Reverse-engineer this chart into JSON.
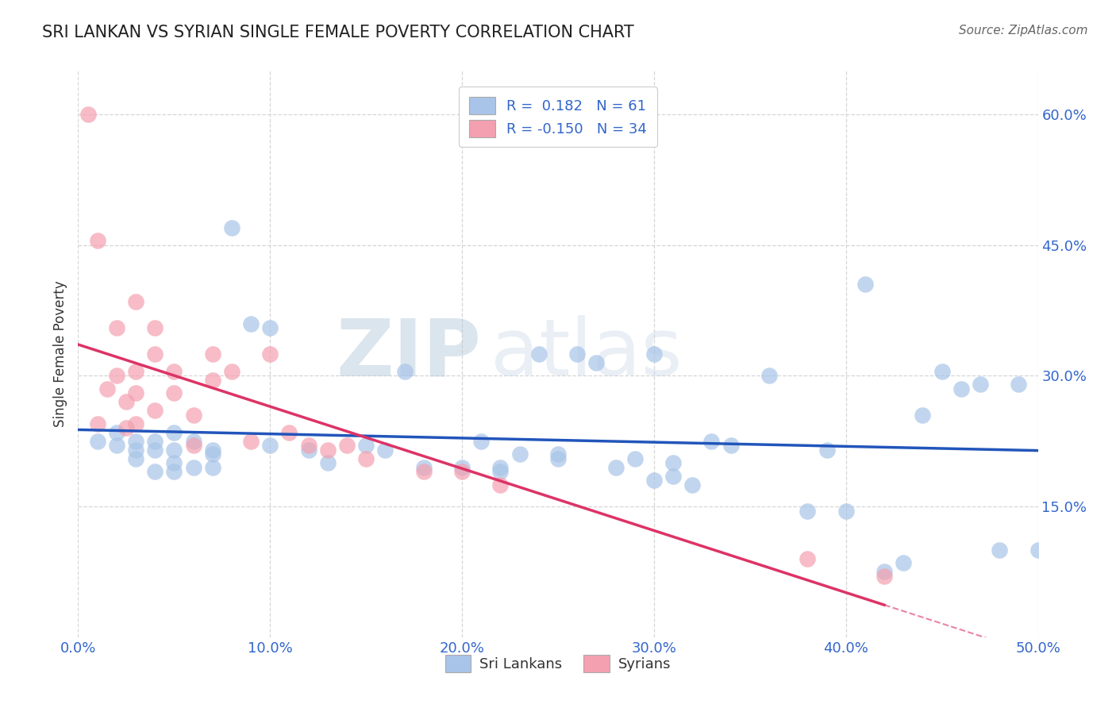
{
  "title": "SRI LANKAN VS SYRIAN SINGLE FEMALE POVERTY CORRELATION CHART",
  "source_text": "Source: ZipAtlas.com",
  "ylabel": "Single Female Poverty",
  "xlim": [
    0.0,
    0.5
  ],
  "ylim": [
    0.0,
    0.65
  ],
  "xticks": [
    0.0,
    0.1,
    0.2,
    0.3,
    0.4,
    0.5
  ],
  "xticklabels": [
    "0.0%",
    "10.0%",
    "20.0%",
    "30.0%",
    "40.0%",
    "50.0%"
  ],
  "yticks_right": [
    0.15,
    0.3,
    0.45,
    0.6
  ],
  "yticklabels_right": [
    "15.0%",
    "30.0%",
    "45.0%",
    "60.0%"
  ],
  "grid_color": "#cccccc",
  "background_color": "#ffffff",
  "watermark_zip": "ZIP",
  "watermark_atlas": "atlas",
  "sri_lanka_color": "#a8c4e8",
  "syrian_color": "#f4a0b0",
  "sri_lanka_trend_color": "#2255bb",
  "syrian_trend_color": "#dd3366",
  "sri_lanka_R": 0.182,
  "sri_lanka_N": 61,
  "syrian_R": -0.15,
  "syrian_N": 34,
  "legend_label_1": "Sri Lankans",
  "legend_label_2": "Syrians",
  "sri_lanka_x": [
    0.01,
    0.02,
    0.02,
    0.03,
    0.03,
    0.03,
    0.04,
    0.04,
    0.04,
    0.05,
    0.05,
    0.05,
    0.05,
    0.06,
    0.06,
    0.07,
    0.07,
    0.07,
    0.08,
    0.09,
    0.1,
    0.1,
    0.12,
    0.13,
    0.15,
    0.16,
    0.17,
    0.18,
    0.2,
    0.21,
    0.22,
    0.22,
    0.23,
    0.24,
    0.25,
    0.25,
    0.26,
    0.27,
    0.28,
    0.29,
    0.3,
    0.3,
    0.31,
    0.31,
    0.32,
    0.33,
    0.34,
    0.36,
    0.38,
    0.39,
    0.4,
    0.41,
    0.42,
    0.43,
    0.44,
    0.45,
    0.46,
    0.47,
    0.48,
    0.49,
    0.5
  ],
  "sri_lanka_y": [
    0.225,
    0.22,
    0.235,
    0.225,
    0.215,
    0.205,
    0.215,
    0.225,
    0.19,
    0.2,
    0.235,
    0.19,
    0.215,
    0.225,
    0.195,
    0.21,
    0.195,
    0.215,
    0.47,
    0.36,
    0.355,
    0.22,
    0.215,
    0.2,
    0.22,
    0.215,
    0.305,
    0.195,
    0.195,
    0.225,
    0.195,
    0.19,
    0.21,
    0.325,
    0.205,
    0.21,
    0.325,
    0.315,
    0.195,
    0.205,
    0.325,
    0.18,
    0.185,
    0.2,
    0.175,
    0.225,
    0.22,
    0.3,
    0.145,
    0.215,
    0.145,
    0.405,
    0.075,
    0.085,
    0.255,
    0.305,
    0.285,
    0.29,
    0.1,
    0.29,
    0.1
  ],
  "syrian_x": [
    0.005,
    0.01,
    0.01,
    0.015,
    0.02,
    0.02,
    0.025,
    0.025,
    0.03,
    0.03,
    0.03,
    0.03,
    0.04,
    0.04,
    0.04,
    0.05,
    0.05,
    0.06,
    0.06,
    0.07,
    0.07,
    0.08,
    0.09,
    0.1,
    0.11,
    0.12,
    0.13,
    0.14,
    0.15,
    0.18,
    0.2,
    0.22,
    0.38,
    0.42
  ],
  "syrian_y": [
    0.6,
    0.245,
    0.455,
    0.285,
    0.355,
    0.3,
    0.27,
    0.24,
    0.385,
    0.305,
    0.28,
    0.245,
    0.355,
    0.325,
    0.26,
    0.305,
    0.28,
    0.255,
    0.22,
    0.325,
    0.295,
    0.305,
    0.225,
    0.325,
    0.235,
    0.22,
    0.215,
    0.22,
    0.205,
    0.19,
    0.19,
    0.175,
    0.09,
    0.07
  ]
}
